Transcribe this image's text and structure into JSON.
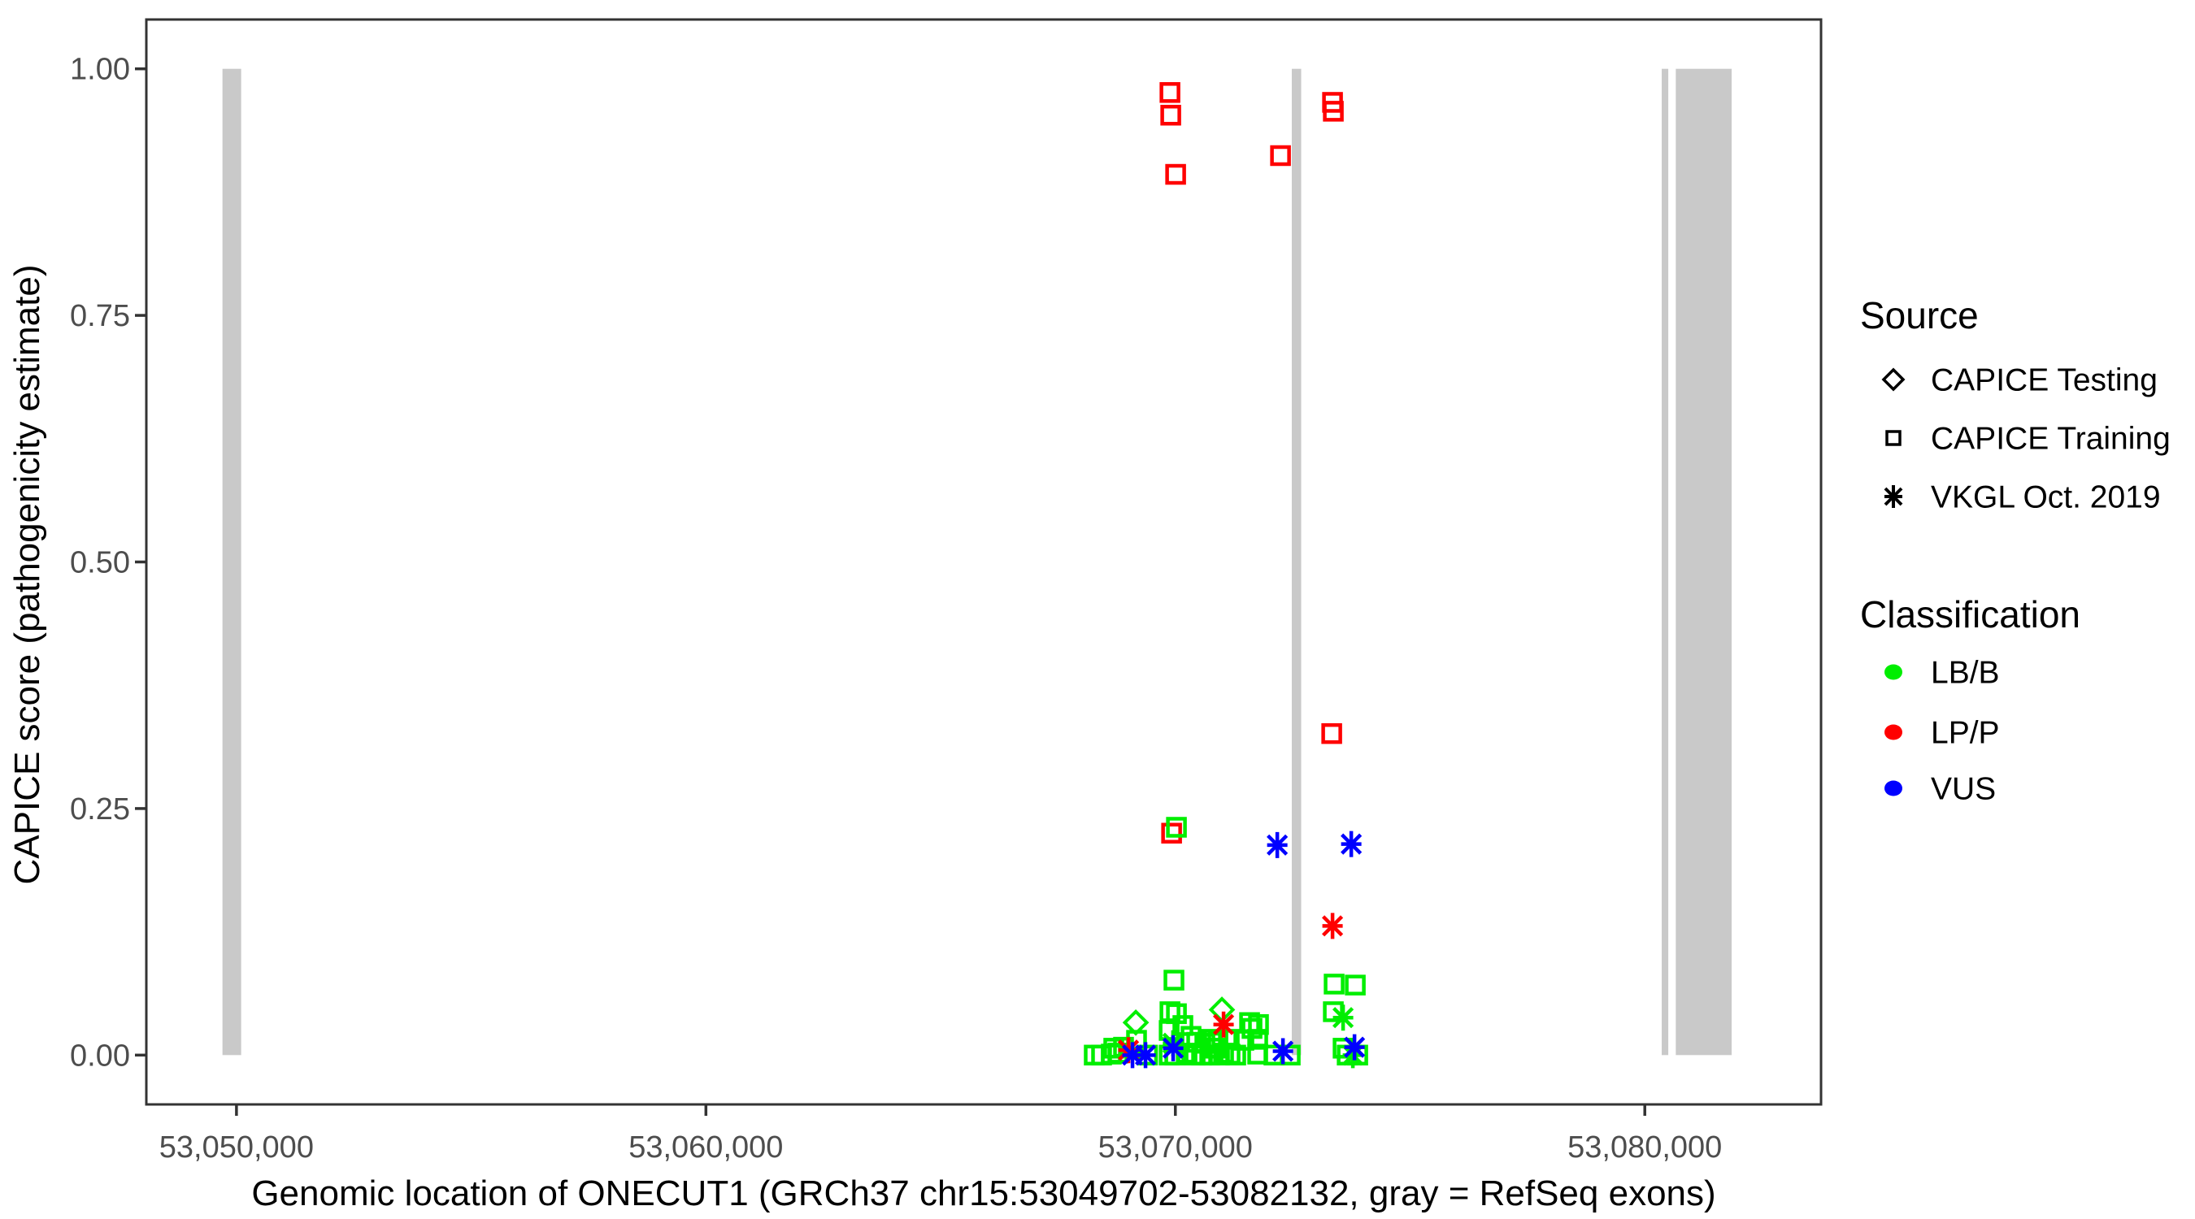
{
  "figure": {
    "x_axis_title": "Genomic location of ONECUT1 (GRCh37 chr15:53049702-53082132, gray = RefSeq exons)",
    "y_axis_title": "CAPICE score (pathogenicity estimate)"
  },
  "chart_data": {
    "type": "scatter",
    "title": "",
    "xlabel": "Genomic location of ONECUT1 (GRCh37 chr15:53049702-53082132, gray = RefSeq exons)",
    "ylabel": "CAPICE score (pathogenicity estimate)",
    "x_domain": [
      53048080,
      53083754
    ],
    "y_domain": [
      -0.05,
      1.05
    ],
    "grid": false,
    "x_ticks": [
      {
        "value": 53050000,
        "label": "53,050,000"
      },
      {
        "value": 53060000,
        "label": "53,060,000"
      },
      {
        "value": 53070000,
        "label": "53,070,000"
      },
      {
        "value": 53080000,
        "label": "53,080,000"
      }
    ],
    "y_ticks": [
      {
        "value": 0.0,
        "label": "0.00"
      },
      {
        "value": 0.25,
        "label": "0.25"
      },
      {
        "value": 0.5,
        "label": "0.50"
      },
      {
        "value": 0.75,
        "label": "0.75"
      },
      {
        "value": 1.0,
        "label": "1.00"
      }
    ],
    "colors": {
      "LB/B": "#00EE00",
      "LP/P": "#FF0000",
      "VUS": "#0000FF",
      "exon": "#C9C9C9",
      "axis_line": "#333333",
      "tick_text": "#4D4D4D"
    },
    "refseq_exons_bp": [
      [
        53049702,
        53050100
      ],
      [
        53072480,
        53072680
      ],
      [
        53080360,
        53080500
      ],
      [
        53080660,
        53081850
      ]
    ],
    "series": [
      {
        "source": "CAPICE Training",
        "classification": "LP/P",
        "shape": "square",
        "points": [
          [
            53069885,
            0.976
          ],
          [
            53069902,
            0.953
          ],
          [
            53070006,
            0.893
          ],
          [
            53072240,
            0.912
          ],
          [
            53073348,
            0.966
          ],
          [
            53073365,
            0.957
          ],
          [
            53073331,
            0.326
          ],
          [
            53069920,
            0.225
          ]
        ]
      },
      {
        "source": "CAPICE Training",
        "classification": "LB/B",
        "shape": "square",
        "points": [
          [
            53068272,
            0.0
          ],
          [
            53068428,
            0.0
          ],
          [
            53068636,
            0.001
          ],
          [
            53068688,
            0.007
          ],
          [
            53068775,
            0.002
          ],
          [
            53068896,
            0.008
          ],
          [
            53069173,
            0.015
          ],
          [
            53069407,
            0.0
          ],
          [
            53069868,
            0.025
          ],
          [
            53069868,
            0.0
          ],
          [
            53069885,
            0.044
          ],
          [
            53069970,
            0.076
          ],
          [
            53069988,
            0.0
          ],
          [
            53070023,
            0.042
          ],
          [
            53070023,
            0.231
          ],
          [
            53070160,
            0.03
          ],
          [
            53070248,
            0.002
          ],
          [
            53070334,
            0.019
          ],
          [
            53070421,
            0.0
          ],
          [
            53070455,
            0.013
          ],
          [
            53070559,
            0.0
          ],
          [
            53070628,
            0.012
          ],
          [
            53070732,
            0.0
          ],
          [
            53070767,
            0.016
          ],
          [
            53070854,
            0.007
          ],
          [
            53070906,
            0.013
          ],
          [
            53070940,
            0.0
          ],
          [
            53071027,
            0.002
          ],
          [
            53071148,
            0.016
          ],
          [
            53071165,
            0.001
          ],
          [
            53071286,
            0.0
          ],
          [
            53071459,
            0.015
          ],
          [
            53071581,
            0.033
          ],
          [
            53071633,
            0.027
          ],
          [
            53071754,
            0.016
          ],
          [
            53071754,
            0.001
          ],
          [
            53071771,
            0.031
          ],
          [
            53072100,
            0.0
          ],
          [
            53072447,
            0.0
          ],
          [
            53073365,
            0.044
          ],
          [
            53073382,
            0.072
          ],
          [
            53073573,
            0.007
          ],
          [
            53073660,
            0.0
          ],
          [
            53073833,
            0.071
          ],
          [
            53073885,
            0.0
          ]
        ]
      },
      {
        "source": "CAPICE Testing",
        "classification": "LB/B",
        "shape": "diamond",
        "points": [
          [
            53069157,
            0.033
          ],
          [
            53070992,
            0.046
          ]
        ]
      },
      {
        "source": "VKGL Oct. 2019",
        "classification": "LB/B",
        "shape": "asterisk",
        "points": [
          [
            53069950,
            0.012
          ],
          [
            53073573,
            0.038
          ],
          [
            53073781,
            0.0
          ]
        ]
      },
      {
        "source": "VKGL Oct. 2019",
        "classification": "LP/P",
        "shape": "asterisk",
        "points": [
          [
            53069001,
            0.005
          ],
          [
            53071027,
            0.031
          ],
          [
            53073348,
            0.131
          ]
        ]
      },
      {
        "source": "VKGL Oct. 2019",
        "classification": "VUS",
        "shape": "asterisk",
        "points": [
          [
            53069087,
            0.0
          ],
          [
            53069364,
            0.0
          ],
          [
            53069953,
            0.007
          ],
          [
            53072171,
            0.213
          ],
          [
            53072292,
            0.004
          ],
          [
            53073747,
            0.214
          ],
          [
            53073816,
            0.008
          ]
        ]
      }
    ],
    "legend": {
      "position": "right",
      "source": {
        "title": "Source",
        "items": [
          {
            "label": "CAPICE Testing",
            "shape": "diamond"
          },
          {
            "label": "CAPICE Training",
            "shape": "square"
          },
          {
            "label": "VKGL Oct. 2019",
            "shape": "asterisk"
          }
        ]
      },
      "classification": {
        "title": "Classification",
        "items": [
          {
            "label": "LB/B",
            "color": "#00EE00"
          },
          {
            "label": "LP/P",
            "color": "#FF0000"
          },
          {
            "label": "VUS",
            "color": "#0000FF"
          }
        ]
      }
    }
  }
}
